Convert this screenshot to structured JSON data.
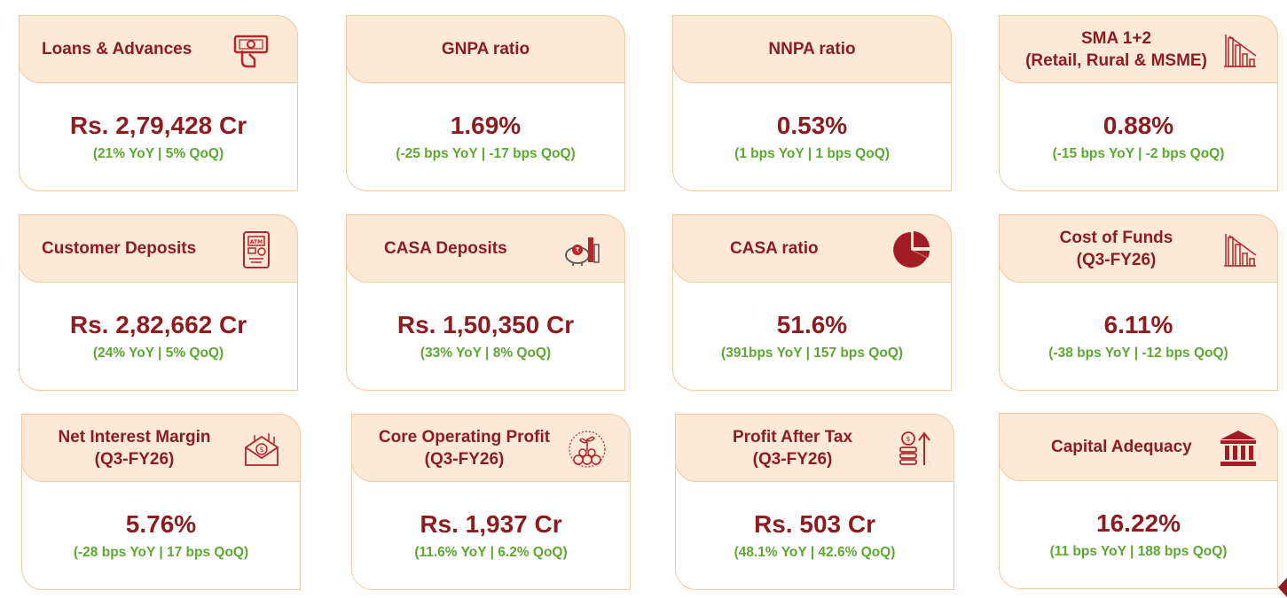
{
  "cards": [
    {
      "title_lines": [
        "Loans & Advances"
      ],
      "value": "Rs. 2,79,428 Cr",
      "change": "(21% YoY | 5% QoQ)",
      "icon": "cash-hand-icon"
    },
    {
      "title_lines": [
        "GNPA ratio"
      ],
      "value": "1.69%",
      "change": "(-25 bps YoY | -17 bps QoQ)"
    },
    {
      "title_lines": [
        "NNPA ratio"
      ],
      "value": "0.53%",
      "change": "(1 bps YoY | 1 bps QoQ)"
    },
    {
      "title_lines": [
        "SMA 1+2",
        "(Retail, Rural & MSME)"
      ],
      "value": "0.88%",
      "change": "(-15 bps YoY | -2 bps QoQ)",
      "icon": "declining-bar-chart-icon"
    },
    {
      "title_lines": [
        "Customer Deposits"
      ],
      "value": "Rs. 2,82,662 Cr",
      "change": "(24% YoY | 5% QoQ)",
      "icon": "atm-icon"
    },
    {
      "title_lines": [
        "CASA Deposits"
      ],
      "value": "Rs. 1,50,350 Cr",
      "change": "(33% YoY | 8% QoQ)",
      "icon": "piggy-bank-icon"
    },
    {
      "title_lines": [
        "CASA ratio"
      ],
      "value": "51.6%",
      "change": "(391bps YoY | 157 bps QoQ)",
      "icon": "pie-chart-icon"
    },
    {
      "title_lines": [
        "Cost of Funds",
        "(Q3-FY26)"
      ],
      "value": "6.11%",
      "change": "(-38 bps YoY | -12 bps QoQ)",
      "icon": "declining-bar-chart-icon"
    },
    {
      "title_lines": [
        "Net Interest Margin",
        "(Q3-FY26)"
      ],
      "value": "5.76%",
      "change": "(-28 bps YoY | 17 bps QoQ)",
      "icon": "money-envelope-icon"
    },
    {
      "title_lines": [
        "Core Operating Profit",
        "(Q3-FY26)"
      ],
      "value": "Rs. 1,937 Cr",
      "change": "(11.6% YoY | 6.2% QoQ)",
      "icon": "money-plant-icon"
    },
    {
      "title_lines": [
        "Profit After Tax",
        "(Q3-FY26)"
      ],
      "value": "Rs. 503 Cr",
      "change": "(48.1% YoY | 42.6% QoQ)",
      "icon": "coins-growth-icon"
    },
    {
      "title_lines": [
        "Capital Adequacy"
      ],
      "value": "16.22%",
      "change": "(11 bps YoY | 188 bps QoQ)",
      "icon": "bank-building-icon"
    }
  ],
  "colors": {
    "accent": "#8b1c1f",
    "positive": "#5da832",
    "header_bg": "#fde9d5",
    "border": "#f2c9a4"
  }
}
